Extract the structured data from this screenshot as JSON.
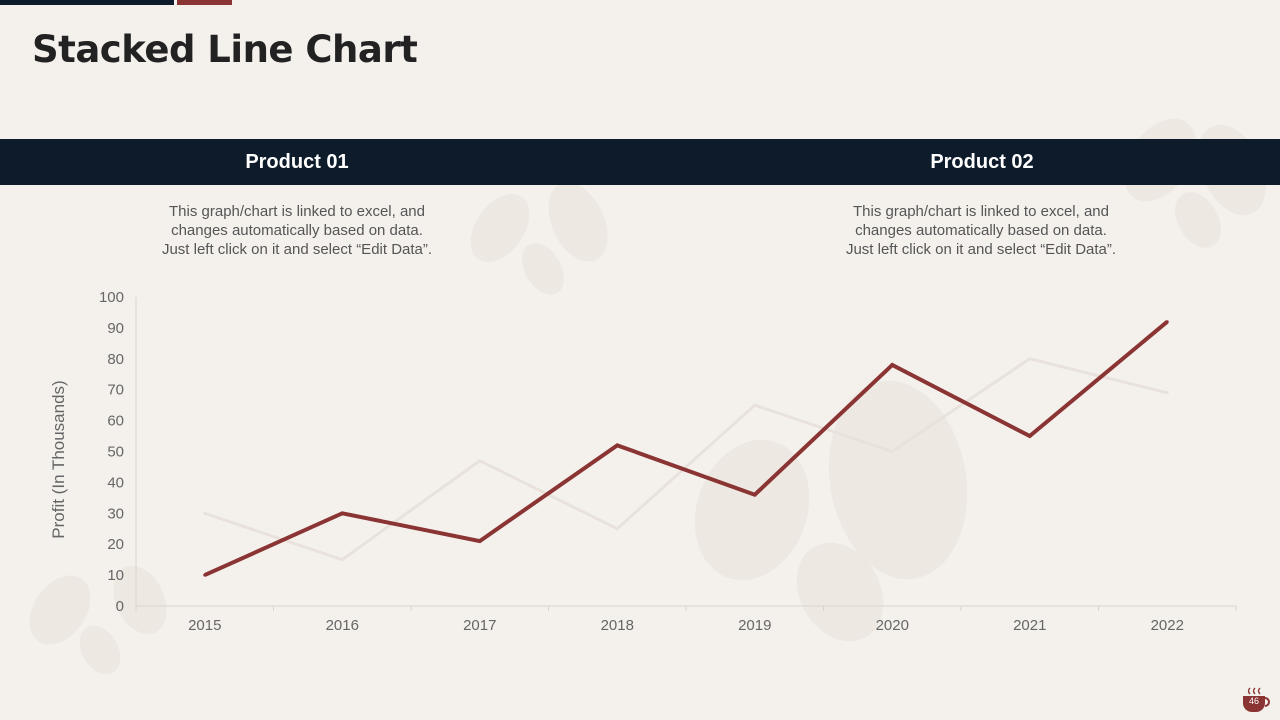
{
  "slide": {
    "title": "Stacked Line Chart",
    "page_number": "46"
  },
  "products": [
    {
      "heading": "Product 01",
      "description": [
        "This graph/chart is linked to excel, and",
        "changes automatically based on data.",
        "Just left click on it and select “Edit Data”."
      ]
    },
    {
      "heading": "Product 02",
      "description": [
        "This graph/chart is linked to excel, and",
        "changes automatically based on data.",
        "Just left click on it and select “Edit Data”."
      ]
    }
  ],
  "chart_data": {
    "type": "line",
    "title": "",
    "xlabel": "",
    "ylabel": "Profit (In Thousands)",
    "categories": [
      "2015",
      "2016",
      "2017",
      "2018",
      "2019",
      "2020",
      "2021",
      "2022"
    ],
    "ylim": [
      0,
      100
    ],
    "yticks": [
      0,
      10,
      20,
      30,
      40,
      50,
      60,
      70,
      80,
      90,
      100
    ],
    "series": [
      {
        "name": "Product 01",
        "color": "#e9e2dc",
        "values": [
          30,
          15,
          47,
          25,
          65,
          50,
          80,
          69
        ]
      },
      {
        "name": "Product 02",
        "color": "#8a3433",
        "values": [
          10,
          30,
          21,
          52,
          36,
          78,
          55,
          92
        ]
      }
    ]
  },
  "colors": {
    "background": "#f4f1ed",
    "navy": "#0e1b2b",
    "accent": "#8a3433"
  },
  "icons": {
    "footer": "coffee-cup-icon"
  }
}
